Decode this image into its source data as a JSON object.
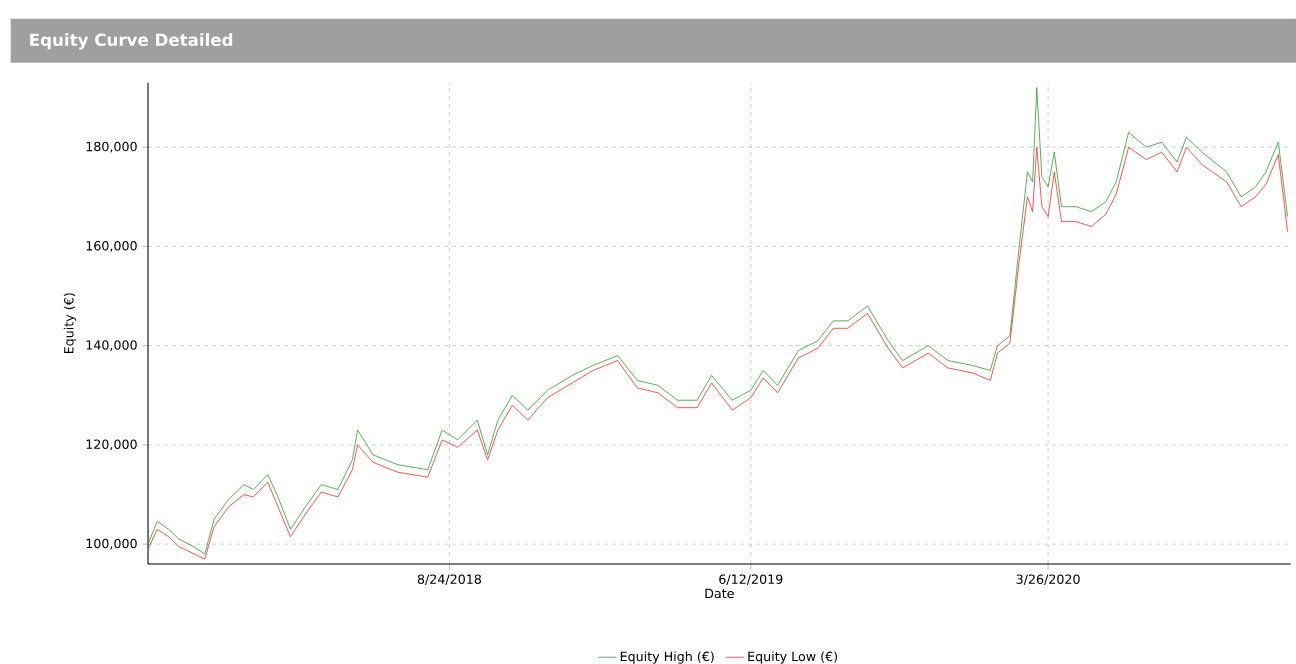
{
  "chart_data": {
    "type": "line",
    "title": "Equity Curve Detailed",
    "xlabel": "Date",
    "ylabel": "Equity (€)",
    "x": [
      "2017-11-05",
      "2017-11-14",
      "2017-11-25",
      "2017-12-05",
      "2017-12-20",
      "2017-12-30",
      "2018-01-08",
      "2018-01-22",
      "2018-02-06",
      "2018-02-15",
      "2018-03-01",
      "2018-03-10",
      "2018-03-23",
      "2018-04-08",
      "2018-04-22",
      "2018-05-08",
      "2018-05-22",
      "2018-05-27",
      "2018-06-11",
      "2018-07-05",
      "2018-08-03",
      "2018-08-17",
      "2018-09-01",
      "2018-09-20",
      "2018-09-30",
      "2018-10-10",
      "2018-10-24",
      "2018-11-08",
      "2018-11-27",
      "2018-12-21",
      "2019-01-10",
      "2019-02-03",
      "2019-02-22",
      "2019-03-14",
      "2019-04-02",
      "2019-04-21",
      "2019-05-05",
      "2019-05-25",
      "2019-06-12",
      "2019-06-24",
      "2019-07-08",
      "2019-07-28",
      "2019-08-16",
      "2019-08-31",
      "2019-09-14",
      "2019-10-03",
      "2019-10-23",
      "2019-11-06",
      "2019-12-01",
      "2019-12-20",
      "2020-01-13",
      "2020-01-30",
      "2020-02-06",
      "2020-02-18",
      "2020-02-27",
      "2020-03-06",
      "2020-03-11",
      "2020-03-15",
      "2020-03-20",
      "2020-03-26",
      "2020-04-01",
      "2020-04-08",
      "2020-04-22",
      "2020-05-07",
      "2020-05-21",
      "2020-05-31",
      "2020-06-12",
      "2020-06-29",
      "2020-07-14",
      "2020-07-29",
      "2020-08-07",
      "2020-08-22",
      "2020-09-15",
      "2020-09-29",
      "2020-10-13",
      "2020-10-23",
      "2020-11-04",
      "2020-11-13"
    ],
    "series": [
      {
        "name": "Equity High (€)",
        "color": "#2e9a2e",
        "values": [
          100000,
          104600,
          103000,
          101000,
          99400,
          98000,
          105000,
          109000,
          112000,
          111000,
          114000,
          110000,
          103000,
          108000,
          112000,
          111000,
          117000,
          123000,
          118000,
          116000,
          115000,
          123000,
          121000,
          125000,
          118000,
          125000,
          130000,
          127000,
          131000,
          134000,
          136000,
          138000,
          133000,
          132000,
          129000,
          129000,
          134000,
          129000,
          131000,
          135000,
          132000,
          139000,
          141000,
          145000,
          145000,
          148000,
          141000,
          137000,
          140000,
          137000,
          136000,
          135000,
          140000,
          142000,
          160000,
          175000,
          173000,
          192000,
          174000,
          172000,
          179000,
          168000,
          168000,
          167000,
          169000,
          173000,
          183000,
          180000,
          181000,
          177000,
          182000,
          179000,
          175000,
          170000,
          172000,
          175000,
          181000,
          166000
        ]
      },
      {
        "name": "Equity Low (€)",
        "color": "#e8302a",
        "values": [
          99000,
          103000,
          101500,
          99500,
          98000,
          97000,
          103500,
          107500,
          110000,
          109500,
          112500,
          108000,
          101500,
          106500,
          110500,
          109500,
          115000,
          120000,
          116500,
          114500,
          113500,
          121000,
          119500,
          123000,
          117000,
          123000,
          128000,
          125000,
          129500,
          132500,
          135000,
          137000,
          131500,
          130500,
          127500,
          127500,
          132500,
          127000,
          129500,
          133500,
          130500,
          137500,
          139500,
          143500,
          143500,
          146500,
          139500,
          135500,
          138500,
          135500,
          134500,
          133000,
          138500,
          140500,
          157000,
          170000,
          167000,
          180000,
          168000,
          166000,
          175000,
          165000,
          165000,
          164000,
          166500,
          170500,
          180000,
          177500,
          179000,
          175000,
          180000,
          176500,
          173000,
          168000,
          170000,
          172500,
          178500,
          163000
        ]
      }
    ],
    "xlim": [
      "2017-11-05",
      "2020-11-16"
    ],
    "ylim": [
      96000,
      193000
    ],
    "xticks": [
      {
        "value": "2018-08-24",
        "label": "8/24/2018"
      },
      {
        "value": "2019-06-12",
        "label": "6/12/2019"
      },
      {
        "value": "2020-03-26",
        "label": "3/26/2020"
      }
    ],
    "yticks": [
      {
        "value": 100000,
        "label": "100,000"
      },
      {
        "value": 120000,
        "label": "120,000"
      },
      {
        "value": 140000,
        "label": "140,000"
      },
      {
        "value": 160000,
        "label": "160,000"
      },
      {
        "value": 180000,
        "label": "180,000"
      }
    ],
    "grid": true,
    "legend": "bottom",
    "marker": "none",
    "line_style": "solid"
  }
}
